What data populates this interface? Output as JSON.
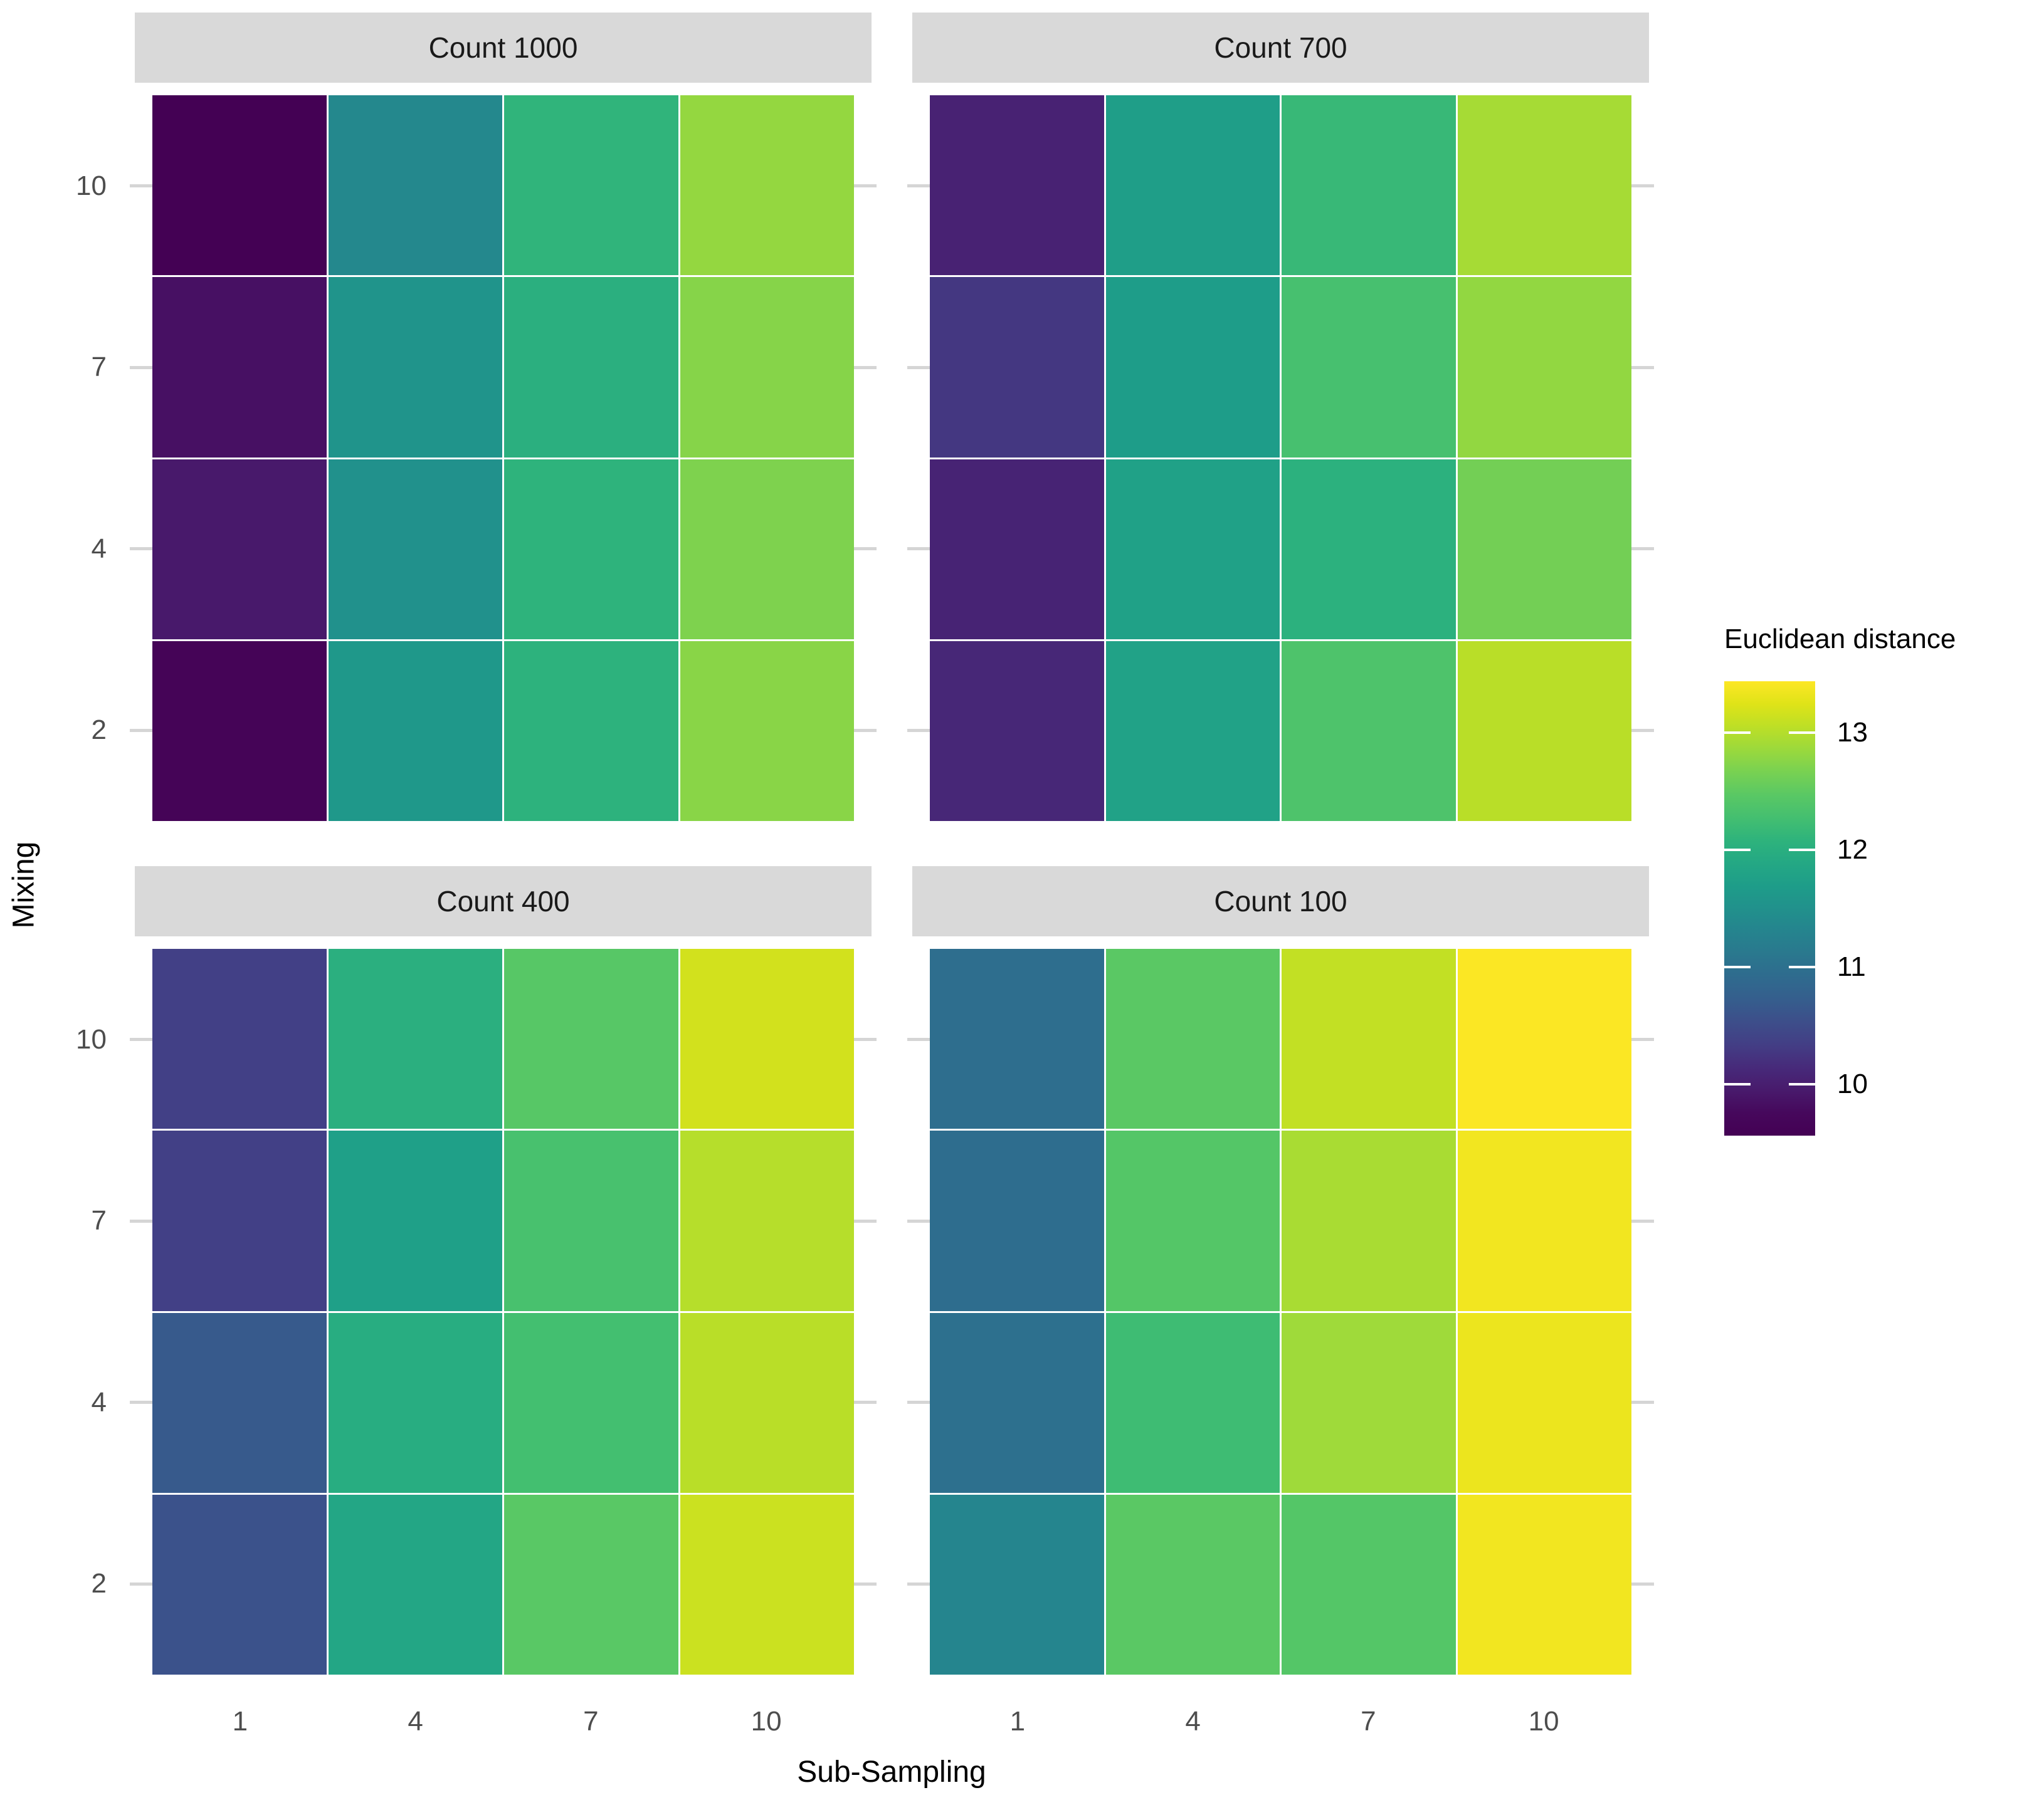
{
  "y_axis": {
    "title": "Mixing",
    "ticks": [
      "10",
      "7",
      "4",
      "2"
    ]
  },
  "x_axis": {
    "title": "Sub-Sampling",
    "ticks": [
      "1",
      "4",
      "7",
      "10"
    ]
  },
  "legend": {
    "title": "Euclidean distance",
    "tick_labels": [
      "13",
      "12",
      "11",
      "10"
    ],
    "tick_values": [
      13,
      12,
      11,
      10
    ]
  },
  "colors": {
    "background": "#ffffff",
    "strip_bg": "#d9d9d9",
    "tick_label": "#4d4d4d",
    "grid_stub": "#d5d5d5",
    "text": "#000000"
  },
  "chart_data": {
    "type": "heatmap",
    "xlabel": "Sub-Sampling",
    "ylabel": "Mixing",
    "x": [
      1,
      4,
      7,
      10
    ],
    "y": [
      10,
      7,
      4,
      2
    ],
    "colormap": "viridis",
    "color_domain": [
      9.56,
      13.44
    ],
    "legend_title": "Euclidean distance",
    "legend_ticks": [
      13,
      12,
      11,
      10
    ],
    "grid": "stubs-at-row-centers",
    "facets": [
      {
        "label": "Count 1000",
        "values": [
          [
            9.56,
            11.37,
            12.1,
            12.82
          ],
          [
            9.84,
            11.55,
            12.02,
            12.74
          ],
          [
            9.94,
            11.5,
            12.08,
            12.7
          ],
          [
            9.64,
            11.62,
            12.06,
            12.76
          ]
        ]
      },
      {
        "label": "Count 700",
        "values": [
          [
            10.04,
            11.72,
            12.17,
            12.92
          ],
          [
            10.27,
            11.7,
            12.3,
            12.81
          ],
          [
            10.06,
            11.76,
            12.04,
            12.63
          ],
          [
            10.1,
            11.78,
            12.36,
            13.03
          ]
        ]
      },
      {
        "label": "Count 400",
        "values": [
          [
            10.36,
            12.02,
            12.44,
            13.17
          ],
          [
            10.36,
            11.74,
            12.31,
            13.01
          ],
          [
            10.68,
            11.97,
            12.27,
            13.03
          ],
          [
            10.58,
            11.86,
            12.46,
            13.13
          ]
        ]
      },
      {
        "label": "Count 100",
        "values": [
          [
            10.97,
            12.47,
            13.08,
            13.43
          ],
          [
            10.95,
            12.42,
            12.94,
            13.37
          ],
          [
            11.0,
            12.22,
            12.88,
            13.33
          ],
          [
            11.32,
            12.47,
            12.42,
            13.37
          ]
        ]
      }
    ]
  }
}
